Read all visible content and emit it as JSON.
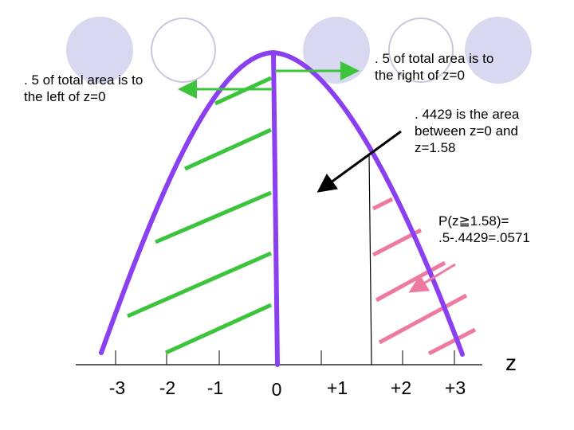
{
  "annotations": {
    "left_half": ". 5 of total area is to\nthe left of z=0",
    "right_half": ". 5 of total area is to\nthe right of z=0",
    "middle_area": ". 4429 is the area\nbetween z=0 and\nz=1.58",
    "tail_prob": "P(z≧1.58)=\n.5-.4429=.0571"
  },
  "axis": {
    "label": "z",
    "ticks": [
      "-3",
      "-2",
      "-1",
      "0",
      "+1",
      "+2",
      "+3"
    ]
  },
  "colors": {
    "curve": "#8a3ff0",
    "left_hatch": "#3cc43c",
    "right_hatch": "#ee7aa2",
    "decor_circles": "#d8d8f0",
    "decor_circle_outline": "#c8c8dc"
  }
}
